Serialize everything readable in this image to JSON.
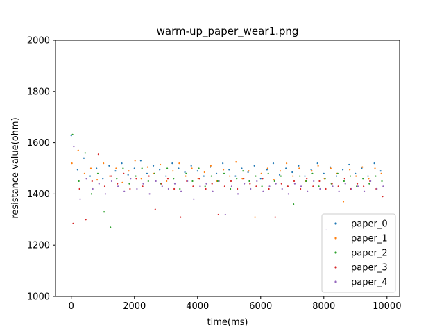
{
  "chart_data": {
    "type": "scatter",
    "title": "warm-up_paper_wear1.png",
    "xlabel": "time(ms)",
    "ylabel": "resistance value(ohm)",
    "xlim": [
      -500,
      10400
    ],
    "ylim": [
      1000,
      2000
    ],
    "xticks": [
      0,
      2000,
      4000,
      6000,
      8000,
      10000
    ],
    "yticks": [
      1000,
      1200,
      1400,
      1600,
      1800,
      2000
    ],
    "grid": false,
    "legend_position": "bottom-right",
    "series": [
      {
        "name": "paper_0",
        "color": "#1f77b4",
        "x": [
          0,
          200,
          400,
          600,
          800,
          1000,
          1200,
          1400,
          1600,
          1800,
          2000,
          2200,
          2400,
          2600,
          2800,
          3000,
          3200,
          3400,
          3600,
          3800,
          4000,
          4200,
          4400,
          4600,
          4800,
          5000,
          5200,
          5400,
          5600,
          5800,
          6000,
          6200,
          6400,
          6600,
          6800,
          7000,
          7200,
          7400,
          7600,
          7800,
          8000,
          8200,
          8400,
          8600,
          8800,
          9000,
          9200,
          9400,
          9600,
          9800
        ],
        "y": [
          1628,
          1495,
          1540,
          1470,
          1500,
          1460,
          1510,
          1490,
          1520,
          1475,
          1500,
          1530,
          1480,
          1510,
          1495,
          1470,
          1520,
          1500,
          1485,
          1510,
          1490,
          1470,
          1505,
          1480,
          1520,
          1495,
          1470,
          1500,
          1485,
          1510,
          1460,
          1495,
          1520,
          1475,
          1500,
          1485,
          1510,
          1470,
          1495,
          1520,
          1480,
          1505,
          1470,
          1495,
          1515,
          1480,
          1500,
          1470,
          1520,
          1490
        ]
      },
      {
        "name": "paper_1",
        "color": "#ff7f0e",
        "x": [
          20,
          220,
          420,
          620,
          820,
          1020,
          1220,
          1420,
          1620,
          1820,
          2020,
          2220,
          2420,
          2620,
          2820,
          3020,
          3220,
          3420,
          3620,
          3820,
          4020,
          4220,
          4420,
          4620,
          4820,
          5020,
          5220,
          5420,
          5620,
          5820,
          6020,
          6220,
          6420,
          6620,
          6820,
          7020,
          7220,
          7420,
          7620,
          7820,
          8020,
          8220,
          8420,
          8620,
          8820,
          9020,
          9220,
          9420,
          9620,
          9820
        ],
        "y": [
          1520,
          1570,
          1480,
          1500,
          1455,
          1520,
          1470,
          1500,
          1445,
          1490,
          1530,
          1460,
          1505,
          1480,
          1515,
          1450,
          1490,
          1520,
          1470,
          1500,
          1460,
          1485,
          1510,
          1450,
          1495,
          1470,
          1525,
          1460,
          1490,
          1310,
          1480,
          1500,
          1455,
          1490,
          1520,
          1470,
          1500,
          1450,
          1490,
          1510,
          1460,
          1500,
          1480,
          1370,
          1495,
          1470,
          1505,
          1460,
          1500,
          1480
        ]
      },
      {
        "name": "paper_2",
        "color": "#2ca02c",
        "x": [
          40,
          240,
          440,
          640,
          840,
          1040,
          1240,
          1440,
          1640,
          1840,
          2040,
          2240,
          2440,
          2640,
          2840,
          3040,
          3240,
          3440,
          3640,
          3840,
          4040,
          4240,
          4440,
          4640,
          4840,
          5040,
          5240,
          5440,
          5640,
          5840,
          6040,
          6240,
          6440,
          6640,
          6840,
          7040,
          7240,
          7440,
          7640,
          7840,
          8040,
          8240,
          8440,
          8640,
          8840,
          9040,
          9240,
          9440,
          9640,
          9840
        ],
        "y": [
          1632,
          1450,
          1560,
          1400,
          1480,
          1330,
          1270,
          1460,
          1500,
          1440,
          1470,
          1500,
          1450,
          1480,
          1440,
          1500,
          1460,
          1420,
          1480,
          1450,
          1500,
          1430,
          1470,
          1450,
          1480,
          1420,
          1460,
          1490,
          1450,
          1470,
          1430,
          1480,
          1450,
          1470,
          1430,
          1360,
          1470,
          1450,
          1480,
          1430,
          1460,
          1440,
          1480,
          1450,
          1470,
          1430,
          1460,
          1440,
          1470,
          1450
        ]
      },
      {
        "name": "paper_3",
        "color": "#d62728",
        "x": [
          60,
          260,
          460,
          660,
          860,
          1060,
          1260,
          1460,
          1660,
          1860,
          2060,
          2260,
          2460,
          2660,
          2860,
          3060,
          3260,
          3460,
          3660,
          3860,
          4060,
          4260,
          4460,
          4660,
          4860,
          5060,
          5260,
          5460,
          5660,
          5860,
          6060,
          6260,
          6460,
          6660,
          6860,
          7060,
          7260,
          7460,
          7660,
          7860,
          8060,
          8260,
          8460,
          8660,
          8860,
          9060,
          9260,
          9460,
          9660,
          9860
        ],
        "y": [
          1285,
          1420,
          1300,
          1450,
          1555,
          1430,
          1470,
          1440,
          1480,
          1420,
          1460,
          1430,
          1470,
          1340,
          1440,
          1460,
          1420,
          1310,
          1450,
          1430,
          1460,
          1420,
          1440,
          1320,
          1430,
          1450,
          1420,
          1460,
          1440,
          1430,
          1460,
          1420,
          1310,
          1440,
          1430,
          1450,
          1420,
          1460,
          1430,
          1450,
          1420,
          1440,
          1430,
          1460,
          1420,
          1440,
          1430,
          1450,
          1420,
          1390
        ]
      },
      {
        "name": "paper_4",
        "color": "#9467bd",
        "x": [
          80,
          280,
          480,
          680,
          880,
          1080,
          1280,
          1480,
          1680,
          1880,
          2080,
          2280,
          2480,
          2680,
          2880,
          3080,
          3280,
          3480,
          3680,
          3880,
          4080,
          4280,
          4480,
          4680,
          4880,
          5080,
          5280,
          5480,
          5680,
          5880,
          6080,
          6280,
          6480,
          6680,
          6880,
          7080,
          7280,
          7480,
          7680,
          7880,
          8080,
          8280,
          8480,
          8680,
          8880,
          9080,
          9280,
          9480,
          9680,
          9880
        ],
        "y": [
          1585,
          1380,
          1460,
          1420,
          1440,
          1400,
          1450,
          1430,
          1410,
          1460,
          1420,
          1440,
          1400,
          1450,
          1430,
          1420,
          1440,
          1410,
          1450,
          1380,
          1430,
          1440,
          1410,
          1450,
          1320,
          1430,
          1400,
          1440,
          1420,
          1450,
          1410,
          1430,
          1440,
          1420,
          1400,
          1440,
          1430,
          1410,
          1450,
          1420,
          1260,
          1430,
          1410,
          1440,
          1420,
          1430,
          1410,
          1450,
          1420,
          1430
        ]
      }
    ]
  }
}
